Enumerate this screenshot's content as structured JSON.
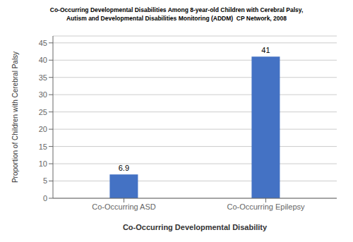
{
  "chart_data": {
    "type": "bar",
    "title": "Co-Occurring Developmental Disabilities Among 8-year-old Children with Cerebral Palsy,\nAutism and Developmental Disabilities Monitoring (ADDM)  CP Network, 2008",
    "categories": [
      "Co-Occurring ASD",
      "Co-Occurring Epilepsy"
    ],
    "values": [
      6.9,
      41
    ],
    "color": "#4472C4",
    "xlabel": "Co-Occurring Developmental Disability",
    "ylabel": "Proportion of Children with Cerebral Palsy",
    "ylim": [
      0,
      47
    ],
    "yticks": [
      0,
      5,
      10,
      15,
      20,
      25,
      30,
      35,
      40,
      45
    ],
    "grid": true,
    "data_labels": true
  }
}
